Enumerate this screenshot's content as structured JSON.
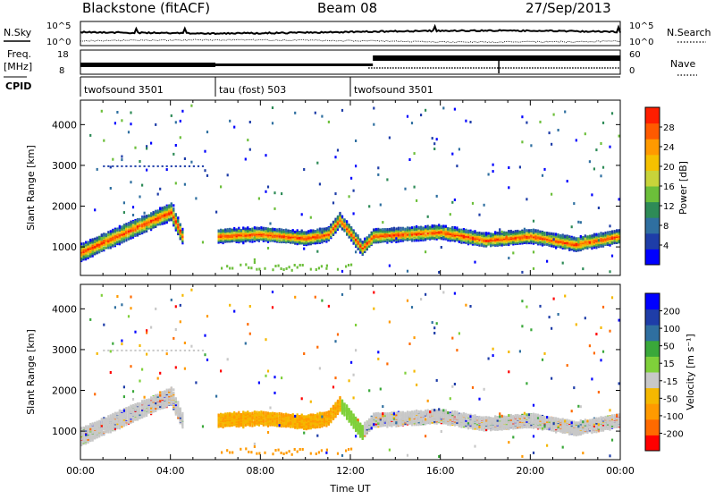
{
  "header": {
    "radar": "Blackstone (fitACF)",
    "beam": "Beam 08",
    "date": "27/Sep/2013"
  },
  "noise_panel": {
    "left_label": "N.Sky",
    "right_label": "N.Search",
    "left_ticks": [
      "10^5",
      "10^0"
    ],
    "right_ticks": [
      "10^5",
      "10^0"
    ]
  },
  "freq_panel": {
    "left_label_1": "Freq.",
    "left_label_2": "[MHz]",
    "right_label": "Nave",
    "left_ticks": [
      "18",
      "8"
    ],
    "right_ticks": [
      "60",
      "0"
    ]
  },
  "cpid": {
    "label": "CPID",
    "segments": [
      {
        "label": "twofsound 3501",
        "start_hour": 0,
        "end_hour": 6
      },
      {
        "label": "tau (fost) 503",
        "start_hour": 6,
        "end_hour": 12
      },
      {
        "label": "twofsound 3501",
        "start_hour": 12,
        "end_hour": 24
      }
    ]
  },
  "chart_data": [
    {
      "type": "heatmap",
      "name": "power",
      "ylabel": "Slant Range [km]",
      "xlim_hours": [
        0,
        24
      ],
      "ylim": [
        300,
        4600
      ],
      "yticks": [
        "1000",
        "2000",
        "3000",
        "4000"
      ],
      "colorbar": {
        "label": "Power [dB]",
        "ticks": [
          "28",
          "24",
          "20",
          "16",
          "12",
          "8",
          "4"
        ],
        "range": [
          0,
          32
        ],
        "colors": [
          "#0000ff",
          "#1e3da8",
          "#2f6fa0",
          "#2e8b57",
          "#6cbf3a",
          "#c8d43a",
          "#f5c100",
          "#ff9a00",
          "#ff5a00",
          "#ff1e00"
        ]
      },
      "echo_band": {
        "description_hours": [
          0,
          24
        ],
        "range_km_by_hour": [
          [
            0,
            900
          ],
          [
            2,
            1400
          ],
          [
            4,
            1900
          ],
          [
            4.5,
            1300
          ],
          [
            6,
            1300
          ],
          [
            8,
            1350
          ],
          [
            10,
            1250
          ],
          [
            11,
            1350
          ],
          [
            11.5,
            1700
          ],
          [
            12.5,
            1000
          ],
          [
            13,
            1300
          ],
          [
            16,
            1400
          ],
          [
            18,
            1200
          ],
          [
            20,
            1300
          ],
          [
            22,
            1100
          ],
          [
            24,
            1300
          ]
        ]
      }
    },
    {
      "type": "heatmap",
      "name": "velocity",
      "ylabel": "Slant Range [km]",
      "xlabel": "Time UT",
      "xticks": [
        "00:00",
        "04:00",
        "08:00",
        "12:00",
        "16:00",
        "20:00",
        "00:00"
      ],
      "xlim_hours": [
        0,
        24
      ],
      "ylim": [
        300,
        4600
      ],
      "yticks": [
        "1000",
        "2000",
        "3000",
        "4000"
      ],
      "colorbar": {
        "label": "Velocity [m s⁻¹]",
        "ticks": [
          "200",
          "100",
          "50",
          "15",
          "-15",
          "-50",
          "-100",
          "-200"
        ],
        "colors": [
          "#ff0000",
          "#ff6a00",
          "#ff9a00",
          "#f5b800",
          "#c8c8c8",
          "#7fd03a",
          "#3aa83a",
          "#2f6fa0",
          "#1e3da8",
          "#0000ff"
        ]
      }
    }
  ]
}
